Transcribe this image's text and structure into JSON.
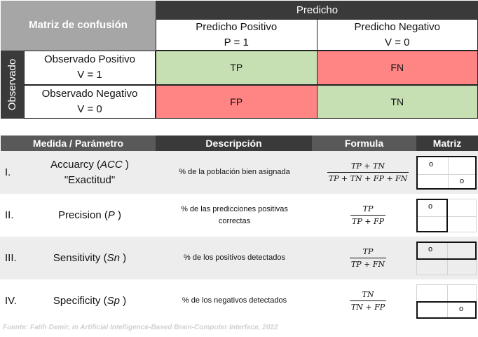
{
  "confusion_matrix": {
    "title": "Matriz de confusión",
    "predicted_header": "Predicho",
    "observed_header": "Observado",
    "col_headers": [
      {
        "label": "Predicho Positivo",
        "sub": "P = 1"
      },
      {
        "label": "Predicho Negativo",
        "sub": "V = 0"
      }
    ],
    "row_headers": [
      {
        "label": "Observado Positivo",
        "sub": "V = 1"
      },
      {
        "label": "Observado Negativo",
        "sub": "V = 0"
      }
    ],
    "cells": [
      [
        "TP",
        "FN"
      ],
      [
        "FP",
        "TN"
      ]
    ],
    "colors": {
      "green": "#c6e0b4",
      "red": "#ff8585"
    }
  },
  "measures_table": {
    "headers": {
      "measure": "Medida / Parámetro",
      "description": "Descripción",
      "formula": "Formula",
      "matrix": "Matriz"
    },
    "header_colors": {
      "measure": "#595959",
      "description": "#3a3a3a",
      "formula": "#595959",
      "matrix": "#3a3a3a"
    },
    "rows": [
      {
        "num": "I.",
        "name_line1_pre": "Accuarcy (",
        "name_line1_abbr": "ACC",
        "name_line1_post": " )",
        "name_line2": "\"Exactitud\"",
        "desc_line1": "% de la población bien asignada",
        "desc_line2": "",
        "formula_num": "TP + TN",
        "formula_den": "TP + TN + FP + FN",
        "marker": "o"
      },
      {
        "num": "II.",
        "name_line1_pre": "Precision (",
        "name_line1_abbr": "P",
        "name_line1_post": " )",
        "name_line2": "",
        "desc_line1": "% de las predicciones positivas",
        "desc_line2": "correctas",
        "formula_num": "TP",
        "formula_den": "TP + FP",
        "marker": "o"
      },
      {
        "num": "III.",
        "name_line1_pre": "Sensitivity (",
        "name_line1_abbr": "Sn",
        "name_line1_post": " )",
        "name_line2": "",
        "desc_line1": "% de los positivos detectados",
        "desc_line2": "",
        "formula_num": "TP",
        "formula_den": "TP + FN",
        "marker": "o"
      },
      {
        "num": "IV.",
        "name_line1_pre": "Specificity (",
        "name_line1_abbr": "Sp",
        "name_line1_post": " )",
        "name_line2": "",
        "desc_line1": "% de los negativos detectados",
        "desc_line2": "",
        "formula_num": "TN",
        "formula_den": "TN + FP",
        "marker": "o"
      }
    ]
  },
  "footnote": "Fuente: Fatih Demir, in Artificial Intelligence-Based Brain-Computer Interface, 2022"
}
